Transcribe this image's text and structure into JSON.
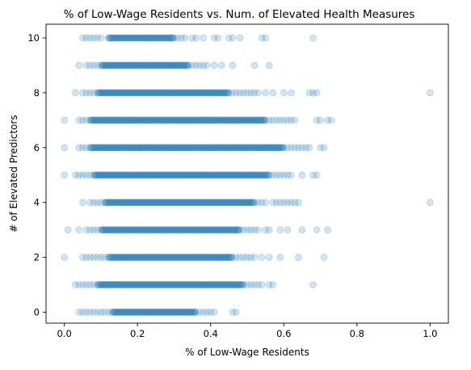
{
  "chart_data": {
    "type": "scatter",
    "title": "% of Low-Wage Residents vs. Num. of Elevated Health Measures",
    "xlabel": "% of Low-Wage Residents",
    "ylabel": "# of Elevated Predictors",
    "xlim": [
      -0.05,
      1.05
    ],
    "ylim": [
      -0.4,
      10.5
    ],
    "xticks": [
      "0.0",
      "0.2",
      "0.4",
      "0.6",
      "0.8",
      "1.0"
    ],
    "xtick_values": [
      0.0,
      0.2,
      0.4,
      0.6,
      0.8,
      1.0
    ],
    "yticks": [
      "0",
      "2",
      "4",
      "6",
      "8",
      "10"
    ],
    "ytick_values": [
      0,
      2,
      4,
      6,
      8,
      10
    ],
    "marker_color": "#1f77b4",
    "marker_alpha": 0.2,
    "grid": false,
    "legend": "none",
    "series": [
      {
        "y": 0,
        "dense_range": [
          0.13,
          0.36
        ],
        "x": [
          0.04,
          0.05,
          0.06,
          0.07,
          0.08,
          0.09,
          0.1,
          0.11,
          0.12,
          0.37,
          0.38,
          0.39,
          0.4,
          0.41,
          0.46,
          0.47
        ]
      },
      {
        "y": 1,
        "dense_range": [
          0.09,
          0.49
        ],
        "x": [
          0.03,
          0.04,
          0.05,
          0.06,
          0.07,
          0.08,
          0.5,
          0.51,
          0.52,
          0.53,
          0.54,
          0.56,
          0.57,
          0.68
        ]
      },
      {
        "y": 2,
        "dense_range": [
          0.12,
          0.46
        ],
        "x": [
          0.0,
          0.05,
          0.06,
          0.07,
          0.08,
          0.09,
          0.1,
          0.11,
          0.47,
          0.48,
          0.49,
          0.5,
          0.51,
          0.52,
          0.54,
          0.56,
          0.59,
          0.64,
          0.71
        ]
      },
      {
        "y": 3,
        "dense_range": [
          0.1,
          0.48
        ],
        "x": [
          0.01,
          0.04,
          0.06,
          0.07,
          0.08,
          0.09,
          0.49,
          0.5,
          0.51,
          0.52,
          0.53,
          0.55,
          0.56,
          0.59,
          0.61,
          0.65,
          0.69,
          0.72
        ]
      },
      {
        "y": 4,
        "dense_range": [
          0.11,
          0.52
        ],
        "x": [
          0.05,
          0.07,
          0.08,
          0.09,
          0.1,
          0.53,
          0.54,
          0.55,
          0.57,
          0.58,
          0.59,
          0.6,
          0.61,
          0.62,
          0.63,
          0.64,
          1.0
        ]
      },
      {
        "y": 5,
        "dense_range": [
          0.08,
          0.56
        ],
        "x": [
          0.0,
          0.03,
          0.04,
          0.05,
          0.06,
          0.07,
          0.57,
          0.58,
          0.59,
          0.6,
          0.61,
          0.62,
          0.65,
          0.68,
          0.69
        ]
      },
      {
        "y": 6,
        "dense_range": [
          0.07,
          0.6
        ],
        "x": [
          0.0,
          0.04,
          0.05,
          0.06,
          0.61,
          0.62,
          0.63,
          0.64,
          0.65,
          0.66,
          0.67,
          0.7,
          0.71
        ]
      },
      {
        "y": 7,
        "dense_range": [
          0.07,
          0.55
        ],
        "x": [
          0.0,
          0.04,
          0.05,
          0.06,
          0.56,
          0.57,
          0.58,
          0.59,
          0.6,
          0.61,
          0.62,
          0.63,
          0.69,
          0.7,
          0.72,
          0.73
        ]
      },
      {
        "y": 8,
        "dense_range": [
          0.09,
          0.45
        ],
        "x": [
          0.03,
          0.05,
          0.06,
          0.07,
          0.08,
          0.46,
          0.47,
          0.48,
          0.49,
          0.5,
          0.51,
          0.52,
          0.53,
          0.55,
          0.57,
          0.6,
          0.62,
          0.67,
          0.68,
          0.69,
          1.0
        ]
      },
      {
        "y": 9,
        "dense_range": [
          0.1,
          0.34
        ],
        "x": [
          0.04,
          0.06,
          0.07,
          0.08,
          0.09,
          0.35,
          0.36,
          0.37,
          0.38,
          0.39,
          0.41,
          0.43,
          0.46,
          0.52,
          0.56
        ]
      },
      {
        "y": 10,
        "dense_range": [
          0.12,
          0.3
        ],
        "x": [
          0.05,
          0.06,
          0.07,
          0.08,
          0.09,
          0.1,
          0.31,
          0.32,
          0.33,
          0.35,
          0.36,
          0.38,
          0.41,
          0.42,
          0.45,
          0.46,
          0.48,
          0.54,
          0.55,
          0.68
        ]
      }
    ]
  }
}
